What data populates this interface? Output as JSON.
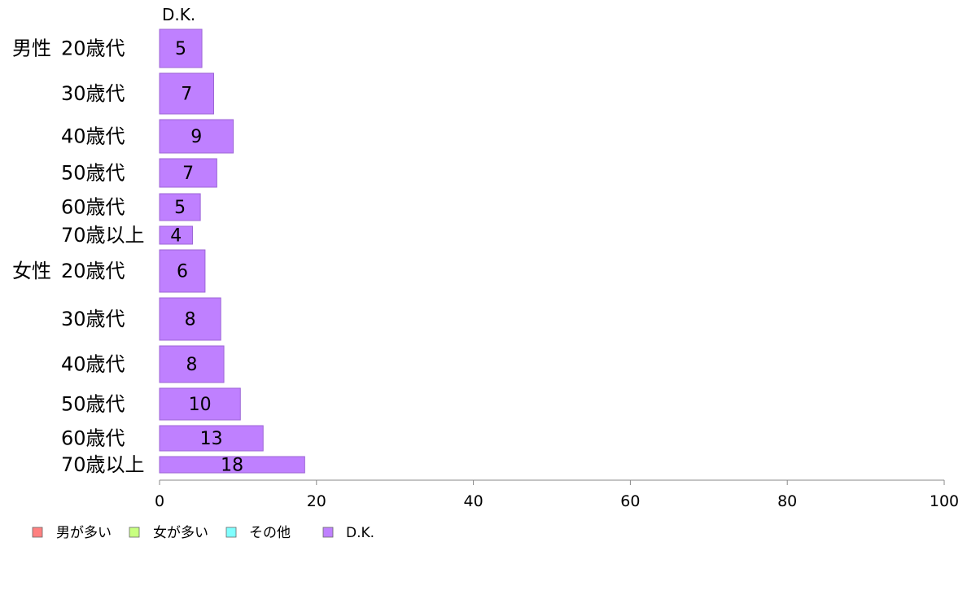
{
  "chart_data": {
    "type": "bar",
    "orientation": "horizontal",
    "stacked": true,
    "column_header": "D.K.",
    "groups": [
      {
        "label": "男性",
        "categories": [
          "20歳代",
          "30歳代",
          "40歳代",
          "50歳代",
          "60歳代",
          "70歳以上"
        ]
      },
      {
        "label": "女性",
        "categories": [
          "20歳代",
          "30歳代",
          "40歳代",
          "50歳代",
          "60歳代",
          "70歳以上"
        ]
      }
    ],
    "series": [
      {
        "name": "男が多い",
        "color": "#ff8080",
        "values": [
          0,
          0,
          0,
          0,
          0,
          0,
          0,
          0,
          0,
          0,
          0,
          0
        ]
      },
      {
        "name": "女が多い",
        "color": "#c8ff80",
        "values": [
          0,
          0,
          0,
          0,
          0,
          0,
          0,
          0,
          0,
          0,
          0,
          0
        ]
      },
      {
        "name": "その他",
        "color": "#80ffff",
        "values": [
          0,
          0,
          0,
          0,
          0,
          0,
          0,
          0,
          0,
          0,
          0,
          0
        ]
      },
      {
        "name": "D.K.",
        "color": "#bf80ff",
        "values": [
          5.4,
          6.9,
          9.4,
          7.3,
          5.2,
          4.2,
          5.8,
          7.8,
          8.2,
          10.3,
          13.2,
          18.5
        ],
        "labels": [
          "5",
          "7",
          "9",
          "7",
          "5",
          "4",
          "6",
          "8",
          "8",
          "10",
          "13",
          "18"
        ]
      }
    ],
    "xlim": [
      0,
      100
    ],
    "xticks": [
      0,
      20,
      40,
      60,
      80,
      100
    ],
    "grid": false,
    "legend_position": "bottom-left"
  }
}
